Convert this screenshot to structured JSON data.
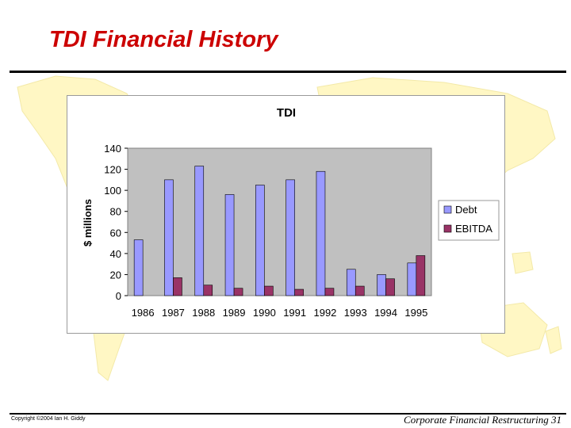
{
  "slide": {
    "title": "TDI Financial History",
    "footer_left": "Copyright ©2004 Ian H. Giddy",
    "footer_right": "Corporate Financial Restructuring 31"
  },
  "colors": {
    "title": "#cc0000",
    "debt": "#9999ff",
    "ebitda": "#993366",
    "plot_bg": "#c0c0c0",
    "map": "#fff7c4"
  },
  "chart_data": {
    "type": "bar",
    "title": "TDI",
    "xlabel": "",
    "ylabel": "$ millions",
    "ylim": [
      0,
      140
    ],
    "yticks": [
      0,
      20,
      40,
      60,
      80,
      100,
      120,
      140
    ],
    "grid": false,
    "legend": "right",
    "categories": [
      "1986",
      "1987",
      "1988",
      "1989",
      "1990",
      "1991",
      "1992",
      "1993",
      "1994",
      "1995"
    ],
    "series": [
      {
        "name": "Debt",
        "values": [
          53,
          110,
          123,
          96,
          105,
          110,
          118,
          25,
          20,
          31
        ]
      },
      {
        "name": "EBITDA",
        "values": [
          0,
          17,
          10,
          7,
          9,
          6,
          7,
          9,
          16,
          38
        ]
      }
    ]
  }
}
